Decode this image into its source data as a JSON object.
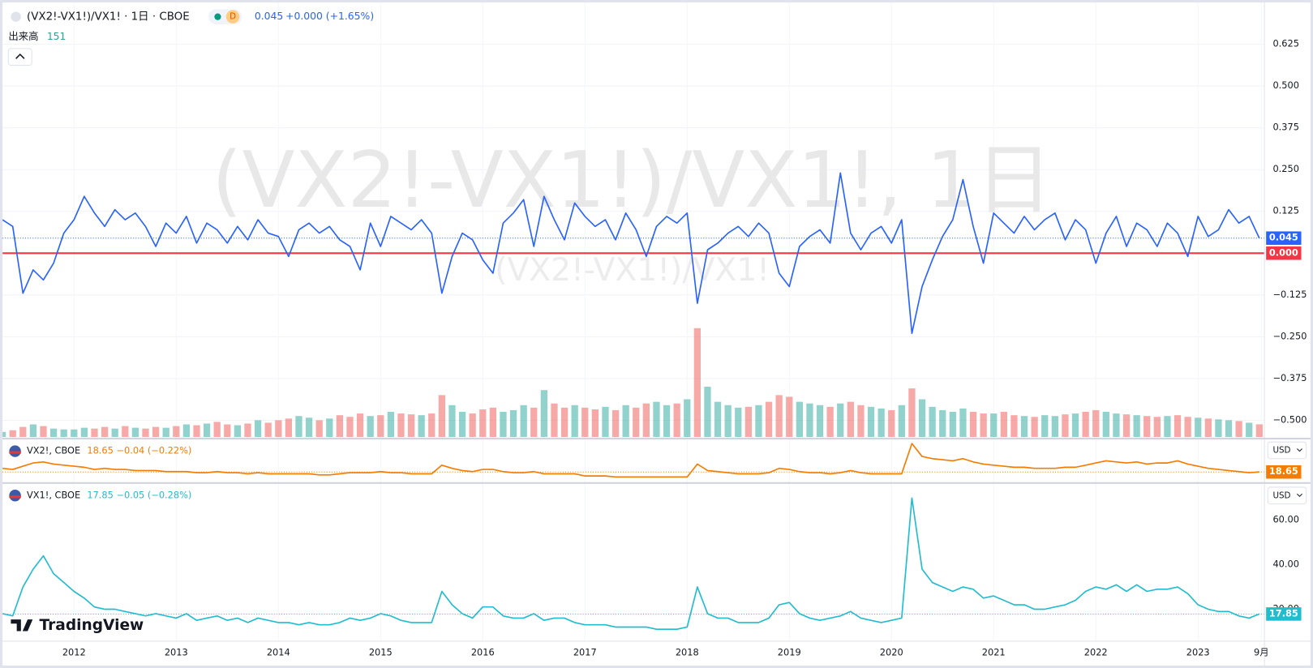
{
  "logo": "TradingView",
  "chart_data": [
    {
      "type": "line",
      "title": "(VX2!-VX1!)/VX1! · 1日 · CBOE",
      "interval_badge": "D",
      "change": "+0.000 (+1.65%)",
      "watermark": "(VX2!-VX1!)/VX1!, 1日",
      "xlim": [
        2011.3,
        2023.65
      ],
      "ylim": [
        -0.55,
        0.75
      ],
      "yticks": [
        {
          "value": -0.5,
          "label": "−0.500"
        },
        {
          "value": -0.375,
          "label": "−0.375"
        },
        {
          "value": -0.25,
          "label": "−0.250"
        },
        {
          "value": -0.125,
          "label": "−0.125"
        },
        0.125,
        {
          "value": 0.25,
          "label": "0.250"
        },
        0.375,
        {
          "value": 0.5,
          "label": "0.500"
        },
        0.625
      ],
      "grid": true,
      "hlines": [
        {
          "value": 0,
          "label": "0.000",
          "color": "#f23645"
        }
      ],
      "x": [
        2011.3,
        2011.4,
        2011.5,
        2011.6,
        2011.7,
        2011.8,
        2011.9,
        2012.0,
        2012.1,
        2012.2,
        2012.3,
        2012.4,
        2012.5,
        2012.6,
        2012.7,
        2012.8,
        2012.9,
        2013.0,
        2013.1,
        2013.2,
        2013.3,
        2013.4,
        2013.5,
        2013.6,
        2013.7,
        2013.8,
        2013.9,
        2014.0,
        2014.1,
        2014.2,
        2014.3,
        2014.4,
        2014.5,
        2014.6,
        2014.7,
        2014.8,
        2014.9,
        2015.0,
        2015.1,
        2015.2,
        2015.3,
        2015.4,
        2015.5,
        2015.6,
        2015.7,
        2015.8,
        2015.9,
        2016.0,
        2016.1,
        2016.2,
        2016.3,
        2016.4,
        2016.5,
        2016.6,
        2016.7,
        2016.8,
        2016.9,
        2017.0,
        2017.1,
        2017.2,
        2017.3,
        2017.4,
        2017.5,
        2017.6,
        2017.7,
        2017.8,
        2017.9,
        2018.0,
        2018.1,
        2018.2,
        2018.3,
        2018.4,
        2018.5,
        2018.6,
        2018.7,
        2018.8,
        2018.9,
        2019.0,
        2019.1,
        2019.2,
        2019.3,
        2019.4,
        2019.5,
        2019.6,
        2019.7,
        2019.8,
        2019.9,
        2020.0,
        2020.1,
        2020.2,
        2020.3,
        2020.4,
        2020.5,
        2020.6,
        2020.7,
        2020.8,
        2020.9,
        2021.0,
        2021.1,
        2021.2,
        2021.3,
        2021.4,
        2021.5,
        2021.6,
        2021.7,
        2021.8,
        2021.9,
        2022.0,
        2022.1,
        2022.2,
        2022.3,
        2022.4,
        2022.5,
        2022.6,
        2022.7,
        2022.8,
        2022.9,
        2023.0,
        2023.1,
        2023.2,
        2023.3,
        2023.4,
        2023.5,
        2023.6
      ],
      "series": [
        {
          "name": "(VX2!-VX1!)/VX1!",
          "type": "line",
          "color": "#2962ff",
          "values": [
            0.1,
            0.08,
            -0.12,
            -0.05,
            -0.08,
            -0.03,
            0.06,
            0.1,
            0.17,
            0.12,
            0.08,
            0.13,
            0.1,
            0.12,
            0.08,
            0.02,
            0.09,
            0.06,
            0.11,
            0.03,
            0.09,
            0.07,
            0.03,
            0.08,
            0.04,
            0.1,
            0.06,
            0.05,
            -0.01,
            0.07,
            0.09,
            0.06,
            0.08,
            0.04,
            0.02,
            -0.05,
            0.09,
            0.02,
            0.11,
            0.09,
            0.07,
            0.1,
            0.06,
            -0.12,
            -0.01,
            0.06,
            0.04,
            -0.02,
            -0.06,
            0.09,
            0.12,
            0.16,
            0.02,
            0.17,
            0.1,
            0.04,
            0.15,
            0.11,
            0.08,
            0.1,
            0.04,
            0.12,
            0.07,
            -0.01,
            0.08,
            0.11,
            0.09,
            0.12,
            -0.15,
            0.01,
            0.03,
            0.06,
            0.08,
            0.05,
            0.09,
            0.06,
            -0.06,
            -0.1,
            0.02,
            0.05,
            0.07,
            0.03,
            0.24,
            0.06,
            0.01,
            0.06,
            0.08,
            0.03,
            0.1,
            -0.24,
            -0.1,
            -0.02,
            0.05,
            0.1,
            0.22,
            0.08,
            -0.03,
            0.12,
            0.09,
            0.06,
            0.11,
            0.07,
            0.1,
            0.12,
            0.04,
            0.1,
            0.07,
            -0.03,
            0.06,
            0.11,
            0.02,
            0.09,
            0.07,
            0.02,
            0.09,
            0.06,
            -0.01,
            0.11,
            0.05,
            0.07,
            0.13,
            0.09,
            0.11,
            0.045
          ]
        },
        {
          "name": "出来高",
          "type": "bar",
          "color": "#26a69a",
          "down_color": "#ef5350",
          "values": [
            60,
            80,
            120,
            150,
            130,
            100,
            90,
            90,
            110,
            100,
            120,
            100,
            130,
            110,
            100,
            120,
            110,
            130,
            150,
            140,
            160,
            180,
            150,
            140,
            160,
            200,
            170,
            200,
            220,
            250,
            230,
            200,
            220,
            260,
            240,
            280,
            250,
            260,
            300,
            280,
            270,
            260,
            280,
            500,
            380,
            300,
            280,
            330,
            350,
            300,
            320,
            380,
            350,
            560,
            400,
            350,
            380,
            350,
            330,
            360,
            320,
            380,
            350,
            400,
            420,
            380,
            400,
            450,
            1300,
            600,
            420,
            380,
            350,
            360,
            380,
            420,
            500,
            480,
            420,
            400,
            380,
            360,
            400,
            420,
            380,
            360,
            340,
            320,
            380,
            580,
            450,
            360,
            320,
            300,
            340,
            300,
            280,
            280,
            300,
            260,
            250,
            240,
            260,
            250,
            270,
            280,
            300,
            320,
            300,
            280,
            270,
            260,
            250,
            240,
            250,
            260,
            240,
            230,
            220,
            210,
            200,
            190,
            170,
            151
          ]
        }
      ]
    },
    {
      "type": "line",
      "title": "VX2!, CBOE",
      "change": "−0.04 (−0.22%)",
      "currency": "USD",
      "xlim": [
        2011.3,
        2023.65
      ],
      "ylim": [
        10,
        48
      ],
      "x": [
        2011.3,
        2011.4,
        2011.5,
        2011.6,
        2011.7,
        2011.8,
        2011.9,
        2012.0,
        2012.1,
        2012.2,
        2012.3,
        2012.4,
        2012.5,
        2012.6,
        2012.7,
        2012.8,
        2012.9,
        2013.0,
        2013.1,
        2013.2,
        2013.3,
        2013.4,
        2013.5,
        2013.6,
        2013.7,
        2013.8,
        2013.9,
        2014.0,
        2014.1,
        2014.2,
        2014.3,
        2014.4,
        2014.5,
        2014.6,
        2014.7,
        2014.8,
        2014.9,
        2015.0,
        2015.1,
        2015.2,
        2015.3,
        2015.4,
        2015.5,
        2015.6,
        2015.7,
        2015.8,
        2015.9,
        2016.0,
        2016.1,
        2016.2,
        2016.3,
        2016.4,
        2016.5,
        2016.6,
        2016.7,
        2016.8,
        2016.9,
        2017.0,
        2017.1,
        2017.2,
        2017.3,
        2017.4,
        2017.5,
        2017.6,
        2017.7,
        2017.8,
        2017.9,
        2018.0,
        2018.1,
        2018.2,
        2018.3,
        2018.4,
        2018.5,
        2018.6,
        2018.7,
        2018.8,
        2018.9,
        2019.0,
        2019.1,
        2019.2,
        2019.3,
        2019.4,
        2019.5,
        2019.6,
        2019.7,
        2019.8,
        2019.9,
        2020.0,
        2020.1,
        2020.2,
        2020.3,
        2020.4,
        2020.5,
        2020.6,
        2020.7,
        2020.8,
        2020.9,
        2021.0,
        2021.1,
        2021.2,
        2021.3,
        2021.4,
        2021.5,
        2021.6,
        2021.7,
        2021.8,
        2021.9,
        2022.0,
        2022.1,
        2022.2,
        2022.3,
        2022.4,
        2022.5,
        2022.6,
        2022.7,
        2022.8,
        2022.9,
        2023.0,
        2023.1,
        2023.2,
        2023.3,
        2023.4,
        2023.5,
        2023.6
      ],
      "series": [
        {
          "name": "VX2!",
          "type": "line",
          "color": "#f57c00",
          "values": [
            22,
            21,
            24,
            27,
            28,
            26,
            25,
            24,
            23,
            21,
            22,
            21,
            21,
            20,
            20,
            20,
            19,
            19,
            19,
            18,
            18,
            19,
            18,
            18,
            17,
            18,
            17,
            17,
            17,
            17,
            17,
            16,
            16,
            17,
            18,
            18,
            18,
            19,
            18,
            18,
            17,
            17,
            17,
            25,
            22,
            20,
            19,
            21,
            21,
            19,
            18,
            18,
            19,
            17,
            17,
            17,
            17,
            15,
            15,
            15,
            14,
            14,
            14,
            14,
            14,
            14,
            14,
            14,
            26,
            20,
            19,
            18,
            17,
            17,
            17,
            18,
            22,
            21,
            19,
            18,
            18,
            17,
            18,
            20,
            18,
            17,
            17,
            17,
            17,
            45,
            33,
            31,
            30,
            29,
            31,
            28,
            26,
            25,
            24,
            23,
            23,
            22,
            22,
            22,
            23,
            23,
            25,
            27,
            29,
            28,
            27,
            28,
            26,
            27,
            27,
            29,
            26,
            24,
            22,
            21,
            20,
            19,
            18,
            18.65
          ]
        }
      ]
    },
    {
      "type": "line",
      "title": "VX1!, CBOE",
      "change": "−0.05 (−0.28%)",
      "currency": "USD",
      "xlim": [
        2011.3,
        2023.65
      ],
      "ylim": [
        6,
        76
      ],
      "yticks": [
        {
          "value": 20,
          "label": "20.00"
        },
        {
          "value": 40,
          "label": "40.00"
        },
        {
          "value": 60,
          "label": "60.00"
        }
      ],
      "xticks": [
        2012,
        2013,
        2014,
        2015,
        2016,
        2017,
        2018,
        2019,
        2020,
        2021,
        2022,
        2023,
        {
          "value": 2023.62,
          "label": "9月"
        }
      ],
      "x": [
        2011.3,
        2011.4,
        2011.5,
        2011.6,
        2011.7,
        2011.8,
        2011.9,
        2012.0,
        2012.1,
        2012.2,
        2012.3,
        2012.4,
        2012.5,
        2012.6,
        2012.7,
        2012.8,
        2012.9,
        2013.0,
        2013.1,
        2013.2,
        2013.3,
        2013.4,
        2013.5,
        2013.6,
        2013.7,
        2013.8,
        2013.9,
        2014.0,
        2014.1,
        2014.2,
        2014.3,
        2014.4,
        2014.5,
        2014.6,
        2014.7,
        2014.8,
        2014.9,
        2015.0,
        2015.1,
        2015.2,
        2015.3,
        2015.4,
        2015.5,
        2015.6,
        2015.7,
        2015.8,
        2015.9,
        2016.0,
        2016.1,
        2016.2,
        2016.3,
        2016.4,
        2016.5,
        2016.6,
        2016.7,
        2016.8,
        2016.9,
        2017.0,
        2017.1,
        2017.2,
        2017.3,
        2017.4,
        2017.5,
        2017.6,
        2017.7,
        2017.8,
        2017.9,
        2018.0,
        2018.1,
        2018.2,
        2018.3,
        2018.4,
        2018.5,
        2018.6,
        2018.7,
        2018.8,
        2018.9,
        2019.0,
        2019.1,
        2019.2,
        2019.3,
        2019.4,
        2019.5,
        2019.6,
        2019.7,
        2019.8,
        2019.9,
        2020.0,
        2020.1,
        2020.2,
        2020.3,
        2020.4,
        2020.5,
        2020.6,
        2020.7,
        2020.8,
        2020.9,
        2021.0,
        2021.1,
        2021.2,
        2021.3,
        2021.4,
        2021.5,
        2021.6,
        2021.7,
        2021.8,
        2021.9,
        2022.0,
        2022.1,
        2022.2,
        2022.3,
        2022.4,
        2022.5,
        2022.6,
        2022.7,
        2022.8,
        2022.9,
        2023.0,
        2023.1,
        2023.2,
        2023.3,
        2023.4,
        2023.5,
        2023.6
      ],
      "series": [
        {
          "name": "VX1!",
          "type": "line",
          "color": "#22bccf",
          "values": [
            18,
            17,
            30,
            38,
            44,
            36,
            32,
            28,
            25,
            21,
            20,
            20,
            19,
            18,
            17,
            18,
            17,
            16,
            18,
            15,
            16,
            17,
            15,
            16,
            14,
            16,
            15,
            14,
            14,
            13,
            14,
            13,
            13,
            14,
            16,
            15,
            16,
            18,
            17,
            15,
            14,
            14,
            14,
            28,
            22,
            18,
            16,
            21,
            21,
            17,
            16,
            16,
            18,
            15,
            16,
            16,
            14,
            13,
            13,
            13,
            12,
            12,
            12,
            12,
            11,
            11,
            11,
            12,
            30,
            18,
            16,
            16,
            14,
            14,
            14,
            16,
            22,
            23,
            18,
            16,
            15,
            16,
            17,
            19,
            16,
            15,
            14,
            15,
            16,
            70,
            38,
            32,
            30,
            28,
            30,
            29,
            25,
            26,
            24,
            22,
            22,
            20,
            20,
            21,
            22,
            24,
            28,
            30,
            29,
            31,
            28,
            31,
            28,
            29,
            29,
            30,
            27,
            22,
            20,
            19,
            19,
            17,
            16,
            17.85
          ]
        }
      ]
    }
  ]
}
